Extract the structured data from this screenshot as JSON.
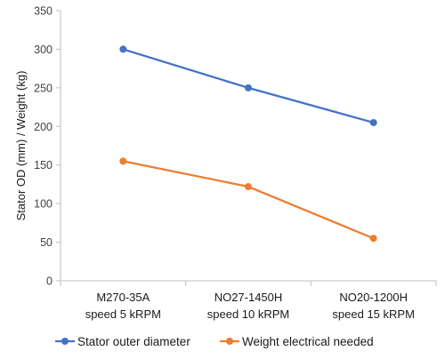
{
  "chart_data": {
    "type": "line",
    "title": "",
    "xlabel": "",
    "ylabel": "Stator OD (mm) / Weight (kg)",
    "ylim": [
      0,
      350
    ],
    "yticks": [
      0,
      50,
      100,
      150,
      200,
      250,
      300,
      350
    ],
    "grid": false,
    "legend": "bottom",
    "categories": [
      [
        "M270-35A",
        "speed 5 kRPM"
      ],
      [
        "NO27-1450H",
        "speed 10 kRPM"
      ],
      [
        "NO20-1200H",
        "speed 15 kRPM"
      ]
    ],
    "series": [
      {
        "name": "Stator outer diameter",
        "color": "#4472C4",
        "values": [
          300,
          250,
          205
        ]
      },
      {
        "name": "Weight electrical needed",
        "color": "#ED7D31",
        "values": [
          155,
          122,
          55
        ]
      }
    ]
  }
}
